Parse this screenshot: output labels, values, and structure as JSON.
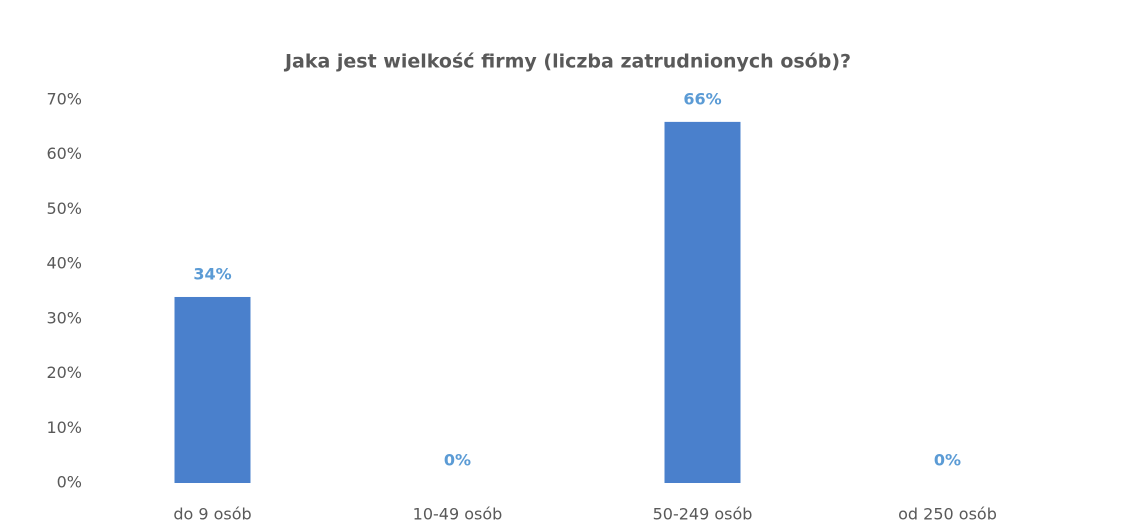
{
  "chart_data": {
    "type": "bar",
    "title": "Jaka jest wielkość firmy (liczba zatrudnionych osób)?",
    "categories": [
      "do 9 osób",
      "10-49 osób",
      "50-249 osób",
      "od 250 osób"
    ],
    "values": [
      34,
      0,
      66,
      0
    ],
    "value_labels": [
      "34%",
      "0%",
      "66%",
      "0%"
    ],
    "color": "#4a80cc",
    "ylim": [
      0,
      70
    ],
    "yticks": [
      {
        "value": 0,
        "label": "0%"
      },
      {
        "value": 10,
        "label": "10%"
      },
      {
        "value": 20,
        "label": "20%"
      },
      {
        "value": 30,
        "label": "30%"
      },
      {
        "value": 40,
        "label": "40%"
      },
      {
        "value": 50,
        "label": "50%"
      },
      {
        "value": 60,
        "label": "60%"
      },
      {
        "value": 70,
        "label": "70%"
      }
    ],
    "grid": false
  }
}
